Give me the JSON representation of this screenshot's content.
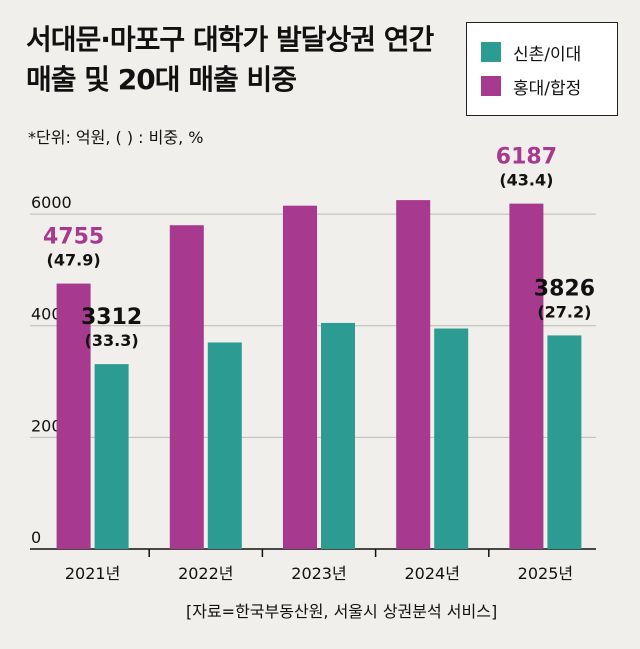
{
  "chart_data": {
    "type": "bar",
    "title": "서대문·마포구 대학가 발달상권 연간 매출 및 20대 매출 비중",
    "subtitle": "*단위: 억원, ( ) : 비중, %",
    "source": "[자료=한국부동산원, 서울시 상권분석 서비스]",
    "categories": [
      "2021년",
      "2022년",
      "2023년",
      "2024년",
      "2025년"
    ],
    "ylim": [
      0,
      7000
    ],
    "yticks": [
      "0",
      "2000",
      "4000",
      "6000"
    ],
    "legend_position": "top-right",
    "series": [
      {
        "name": "홍대/합정",
        "color": "#a7398e",
        "values": [
          4755,
          5800,
          6150,
          6250,
          6187
        ],
        "labels": [
          "4755",
          "",
          "",
          "",
          "6187"
        ],
        "shares": [
          "(47.9)",
          "",
          "",
          "",
          "(43.4)"
        ]
      },
      {
        "name": "신촌/이대",
        "color": "#2c9c93",
        "values": [
          3312,
          3700,
          4050,
          3950,
          3826
        ],
        "labels": [
          "3312",
          "",
          "",
          "",
          "3826"
        ],
        "shares": [
          "(33.3)",
          "",
          "",
          "",
          "(27.2)"
        ]
      }
    ],
    "legend_order": [
      1,
      0
    ]
  }
}
